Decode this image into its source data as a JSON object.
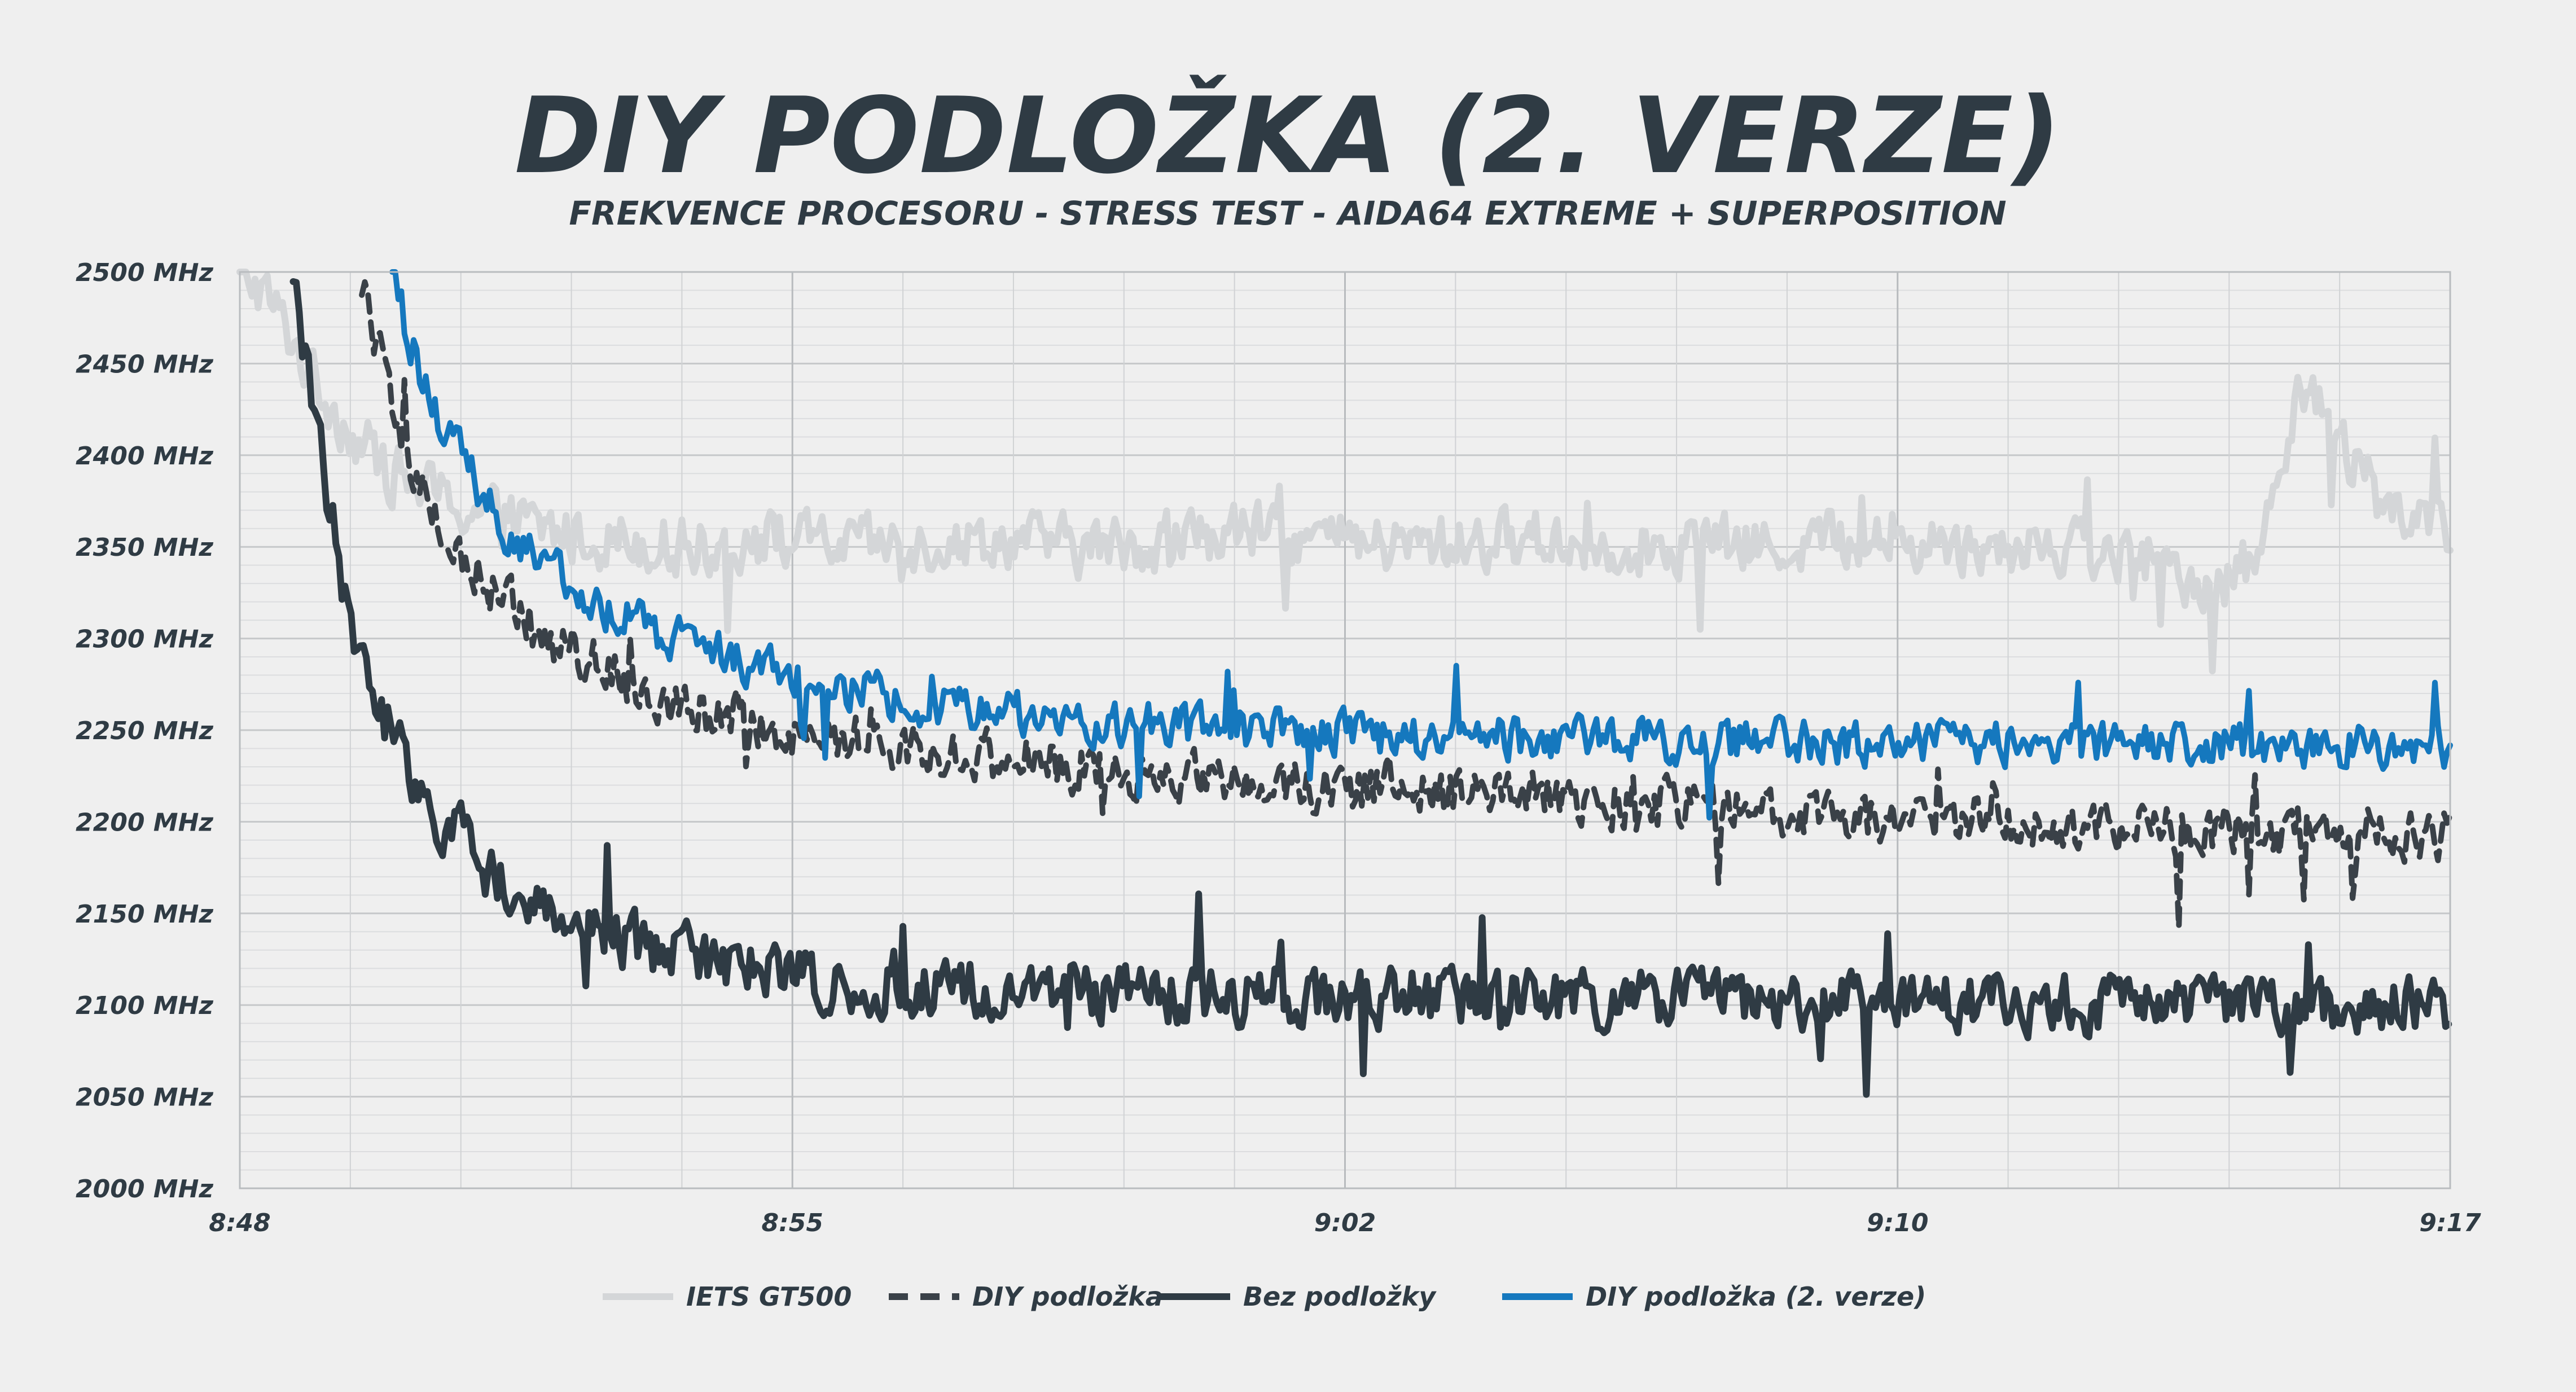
{
  "chart_data": {
    "type": "line",
    "title": "DIY PODLOŽKA (2. VERZE)",
    "subtitle": "FREKVENCE PROCESORU - STRESS TEST - AIDA64 EXTREME + SUPERPOSITION",
    "xlabel": "",
    "ylabel": "",
    "x_range_minutes": [
      0,
      29
    ],
    "x_ticks": [
      {
        "label": "8:48",
        "minute": 0
      },
      {
        "label": "8:55",
        "minute": 7.25
      },
      {
        "label": "9:02",
        "minute": 14.5
      },
      {
        "label": "9:10",
        "minute": 21.75
      },
      {
        "label": "9:17",
        "minute": 29
      }
    ],
    "y_unit": " MHz",
    "ylim": [
      2000,
      2500
    ],
    "y_ticks": [
      2500,
      2450,
      2400,
      2350,
      2300,
      2250,
      2200,
      2150,
      2100,
      2050,
      2000
    ],
    "grid": true,
    "legend_position": "bottom",
    "series": [
      {
        "name": "IETS GT500",
        "color": "#d4d6d8",
        "dash": "solid",
        "x": [
          0,
          0.3,
          0.6,
          1,
          1.5,
          2,
          2.5,
          3,
          3.5,
          4,
          4.5,
          5,
          6,
          7,
          8,
          9,
          10,
          11,
          12,
          13,
          14,
          15,
          16,
          17,
          18,
          19,
          20,
          21,
          22,
          23,
          24,
          25,
          25.5,
          26,
          26.5,
          27,
          28,
          29
        ],
        "values": [
          2500,
          2490,
          2470,
          2440,
          2410,
          2390,
          2380,
          2370,
          2365,
          2360,
          2355,
          2355,
          2350,
          2355,
          2350,
          2352,
          2355,
          2350,
          2352,
          2358,
          2355,
          2350,
          2352,
          2355,
          2350,
          2352,
          2350,
          2355,
          2352,
          2350,
          2352,
          2340,
          2335,
          2330,
          2345,
          2440,
          2380,
          2355
        ]
      },
      {
        "name": "DIY podložka",
        "color": "#3a4148",
        "dash": "dashed",
        "x": [
          1.6,
          1.8,
          2,
          2.3,
          2.6,
          3,
          3.5,
          4,
          4.5,
          5,
          5.5,
          6,
          7,
          8,
          9,
          10,
          11,
          12,
          13,
          14,
          15,
          16,
          17,
          18,
          19,
          20,
          21,
          22,
          23,
          24,
          25,
          26,
          27,
          28,
          29
        ],
        "values": [
          2500,
          2460,
          2420,
          2390,
          2360,
          2340,
          2320,
          2300,
          2290,
          2280,
          2270,
          2262,
          2250,
          2245,
          2240,
          2235,
          2230,
          2225,
          2222,
          2220,
          2218,
          2215,
          2212,
          2210,
          2208,
          2205,
          2203,
          2200,
          2200,
          2198,
          2197,
          2196,
          2195,
          2195,
          2193
        ]
      },
      {
        "name": "Bez podložky",
        "color": "#2f3b44",
        "dash": "solid",
        "x": [
          0.7,
          0.8,
          1,
          1.2,
          1.5,
          2,
          2.5,
          3,
          3.5,
          4,
          5,
          6,
          7,
          8,
          9,
          10,
          11,
          12,
          13,
          14,
          15,
          16,
          17,
          18,
          19,
          20,
          21,
          22,
          23,
          24,
          25,
          26,
          27,
          28,
          29
        ],
        "values": [
          2500,
          2470,
          2420,
          2370,
          2290,
          2250,
          2210,
          2185,
          2165,
          2150,
          2135,
          2125,
          2118,
          2112,
          2110,
          2108,
          2107,
          2106,
          2105,
          2105,
          2104,
          2104,
          2103,
          2103,
          2103,
          2102,
          2102,
          2102,
          2101,
          2101,
          2101,
          2100,
          2100,
          2100,
          2100
        ]
      },
      {
        "name": "DIY podložka (2. verze)",
        "color": "#1578be",
        "dash": "solid",
        "x": [
          2,
          2.2,
          2.5,
          3,
          3.5,
          4,
          4.5,
          5,
          6,
          7,
          8,
          9,
          10,
          11,
          12,
          13,
          14,
          15,
          16,
          17,
          18,
          19,
          20,
          21,
          22,
          23,
          24,
          25,
          26,
          27,
          28,
          29
        ],
        "values": [
          2500,
          2465,
          2430,
          2390,
          2360,
          2340,
          2325,
          2312,
          2295,
          2282,
          2272,
          2265,
          2260,
          2256,
          2253,
          2250,
          2248,
          2247,
          2246,
          2245,
          2245,
          2244,
          2244,
          2243,
          2243,
          2243,
          2242,
          2242,
          2241,
          2241,
          2241,
          2240
        ]
      }
    ]
  }
}
